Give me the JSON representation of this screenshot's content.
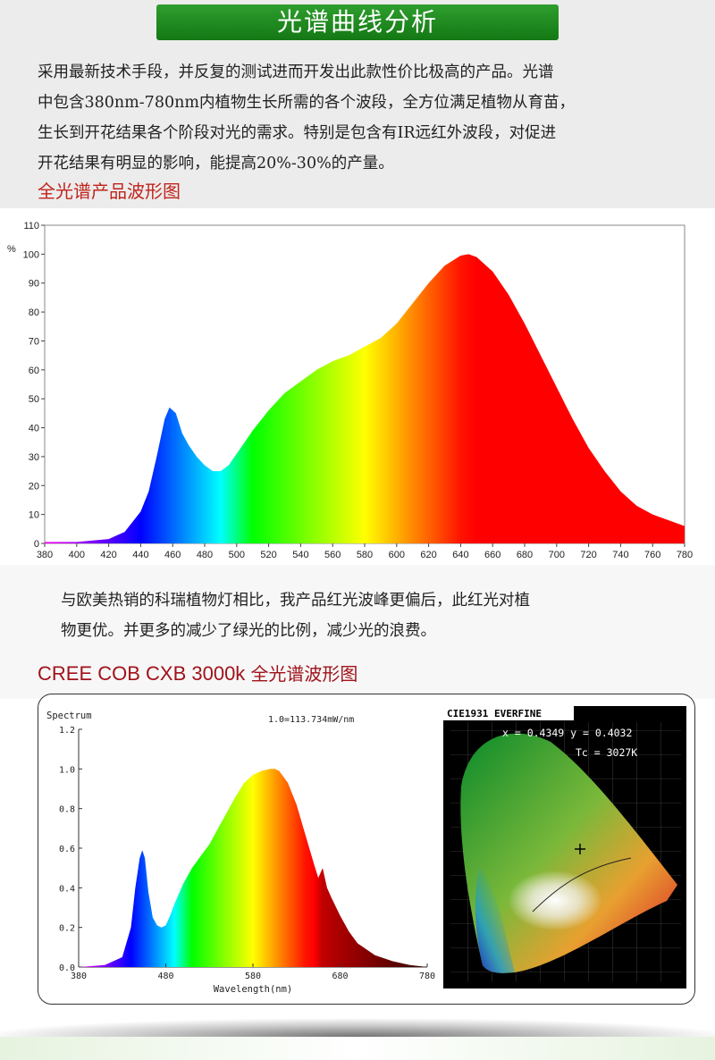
{
  "header": {
    "title": "光谱曲线分析",
    "accent": "#1e8a1e"
  },
  "intro": {
    "lines": [
      "采用最新技术手段，并反复的测试进而开发出此款性价比极高的产品。光谱",
      "中包含380nm-780nm内植物生长所需的各个波段，全方位满足植物从育苗，",
      "生长到开花结果各个阶段对光的需求。特别是包含有IR远红外波段，对促进",
      "开花结果有明显的影响，能提高20%-30%的产量。"
    ],
    "subtitle": "全光谱产品波形图"
  },
  "compare": {
    "lines": [
      "与欧美热销的科瑞植物灯相比，我产品红光波峰更偏后，此红光对植",
      "物更优。并更多的减少了绿光的比例，减少光的浪费。"
    ],
    "cree_title_en": "CREE COB CXB 3000k ",
    "cree_title_cn": "全光谱波形图"
  },
  "chart_data": [
    {
      "type": "area",
      "ylabel": "%",
      "xlim": [
        380,
        780
      ],
      "ylim": [
        0,
        110
      ],
      "x_ticks": [
        380,
        400,
        420,
        440,
        460,
        480,
        500,
        520,
        540,
        560,
        580,
        600,
        620,
        640,
        660,
        680,
        700,
        720,
        740,
        760,
        780
      ],
      "y_ticks": [
        0,
        10,
        20,
        30,
        40,
        50,
        60,
        70,
        80,
        90,
        100,
        110
      ],
      "grid": false,
      "series": [
        {
          "x": [
            380,
            400,
            420,
            430,
            440,
            445,
            450,
            455,
            458,
            462,
            466,
            470,
            475,
            480,
            485,
            490,
            495,
            500,
            510,
            520,
            530,
            540,
            550,
            560,
            570,
            580,
            590,
            600,
            610,
            620,
            630,
            640,
            645,
            650,
            660,
            670,
            680,
            690,
            700,
            710,
            720,
            730,
            740,
            750,
            760,
            770,
            780
          ],
          "values": [
            0.5,
            0.5,
            1.5,
            4,
            11,
            18,
            30,
            43,
            47,
            45,
            38,
            34,
            30,
            27,
            25,
            25,
            27,
            31,
            39,
            46,
            52,
            56,
            60,
            63,
            65,
            68,
            71,
            76,
            83,
            90,
            96,
            99.5,
            100,
            99,
            94,
            86,
            76,
            65,
            54,
            43,
            33,
            25,
            18,
            13,
            10,
            8,
            6
          ]
        }
      ]
    },
    {
      "type": "area",
      "title": "Spectrum",
      "annotation": "1.0=113.734mW/nm",
      "xlabel": "Wavelength(nm)",
      "xlim": [
        380,
        780
      ],
      "ylim": [
        0,
        1.2
      ],
      "x_ticks": [
        380,
        480,
        580,
        680,
        780
      ],
      "y_ticks": [
        "0.0",
        "0.2",
        "0.4",
        "0.6",
        "0.8",
        "1.0",
        "1.2"
      ],
      "series": [
        {
          "x": [
            380,
            410,
            430,
            440,
            445,
            450,
            453,
            456,
            460,
            465,
            470,
            475,
            480,
            485,
            490,
            500,
            510,
            520,
            530,
            540,
            550,
            560,
            570,
            580,
            590,
            600,
            605,
            610,
            620,
            630,
            640,
            650,
            655,
            660,
            665,
            670,
            680,
            690,
            700,
            720,
            740,
            760,
            780
          ],
          "values": [
            0,
            0.01,
            0.05,
            0.2,
            0.4,
            0.55,
            0.59,
            0.55,
            0.38,
            0.25,
            0.21,
            0.2,
            0.21,
            0.26,
            0.32,
            0.42,
            0.5,
            0.56,
            0.62,
            0.7,
            0.78,
            0.86,
            0.93,
            0.97,
            0.99,
            1.0,
            1.0,
            0.99,
            0.93,
            0.82,
            0.67,
            0.52,
            0.45,
            0.5,
            0.4,
            0.35,
            0.26,
            0.18,
            0.12,
            0.06,
            0.03,
            0.01,
            0
          ]
        }
      ]
    }
  ],
  "cie": {
    "title": "CIE1931 EVERFINE",
    "coords": "x = 0.4349 y = 0.4032",
    "tc": "Tc = 3027K"
  }
}
